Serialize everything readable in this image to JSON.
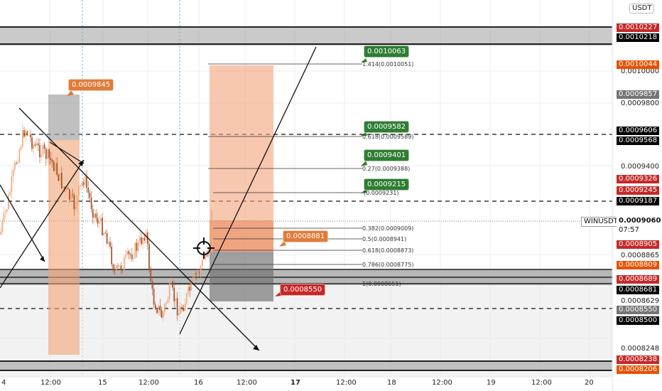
{
  "quote_currency": "USDT",
  "symbol": "WINUSDT",
  "current_price": "0.0009060",
  "countdown": "07:57",
  "price_axis_labels": [
    "0.0010000",
    "0.0009800",
    "0.0009400",
    "0.0008865",
    "0.0008629",
    "0.0008248"
  ],
  "price_axis_markers": [
    {
      "text": "0.0010227",
      "color": "#c62828"
    },
    {
      "text": "0.0010218",
      "color": "#000000"
    },
    {
      "text": "0.0010044",
      "color": "#e65100"
    },
    {
      "text": "0.0009857",
      "color": "#757575"
    },
    {
      "text": "0.0009606",
      "color": "#000000"
    },
    {
      "text": "0.0009568",
      "color": "#000000"
    },
    {
      "text": "0.0009326",
      "color": "#c62828"
    },
    {
      "text": "0.0009245",
      "color": "#c62828"
    },
    {
      "text": "0.0009187",
      "color": "#000000"
    },
    {
      "text": "0.0008905",
      "color": "#c62828"
    },
    {
      "text": "0.0008809",
      "color": "#e65100"
    },
    {
      "text": "0.0008689",
      "color": "#c62828"
    },
    {
      "text": "0.0008681",
      "color": "#000000"
    },
    {
      "text": "0.0008550",
      "color": "#757575"
    },
    {
      "text": "0.0008500",
      "color": "#000000"
    },
    {
      "text": "0.0008238",
      "color": "#c62828"
    },
    {
      "text": "0.0008206",
      "color": "#e65100"
    }
  ],
  "time_axis_labels": [
    "4",
    "12:00",
    "15",
    "12:00",
    "16",
    "12:00",
    "17",
    "12:00",
    "18",
    "12:00",
    "19",
    "12:00",
    "20"
  ],
  "fib_levels": [
    "1.414(0.0010051)",
    "0.618(0.0009589)",
    "0.27(0.0009388)",
    "(0.0009231)",
    "0.382(0.0009009)",
    "0.5(0.0008941)",
    "0.618(0.0008873)",
    "0.786(0.0008775)",
    "1(0.0008651)"
  ],
  "chart_tags": [
    {
      "text": "0.0010063",
      "color": "#2e7d32"
    },
    {
      "text": "0.0009582",
      "color": "#2e7d32"
    },
    {
      "text": "0.0009401",
      "color": "#2e7d32"
    },
    {
      "text": "0.0009215",
      "color": "#2e7d32"
    },
    {
      "text": "0.0009845",
      "color": "#e07b39"
    },
    {
      "text": "0.0008881",
      "color": "#e07b39"
    },
    {
      "text": "0.0008550",
      "color": "#c62828"
    }
  ],
  "colors": {
    "bull": "#f0a575",
    "bear": "#a04a1e",
    "green_tag": "#2e7d32",
    "orange_tag": "#e07b39",
    "red": "#c62828"
  }
}
